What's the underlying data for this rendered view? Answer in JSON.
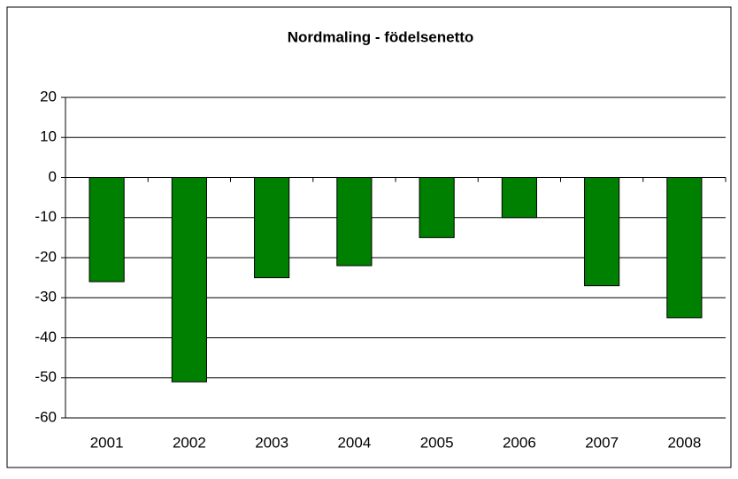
{
  "chart_data": {
    "type": "bar",
    "title": "Nordmaling - födelsenetto",
    "categories": [
      "2001",
      "2002",
      "2003",
      "2004",
      "2005",
      "2006",
      "2007",
      "2008"
    ],
    "values": [
      -26,
      -51,
      -25,
      -22,
      -15,
      -10,
      -27,
      -35
    ],
    "color": "#008000",
    "ylim": [
      -60,
      20
    ],
    "yticks": [
      -60,
      -50,
      -40,
      -30,
      -20,
      -10,
      0,
      10,
      20
    ],
    "grid": true
  }
}
